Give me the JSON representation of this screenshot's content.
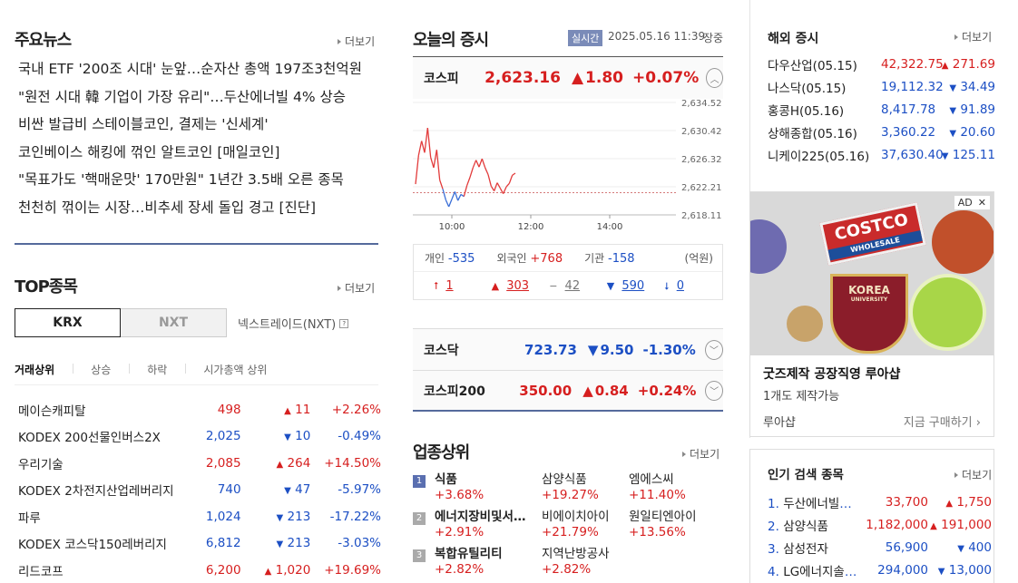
{
  "main_news": {
    "title": "주요뉴스",
    "more": "더보기",
    "items": [
      "국내 ETF '200조 시대' 눈앞…순자산 총액 197조3천억원",
      "\"원전 시대 韓 기업이 가장 유리\"…두산에너빌 4% 상승",
      "비싼 발급비 스테이블코인, 결제는 '신세계'",
      "코인베이스 해킹에 꺾인 알트코인 [매일코인]",
      "\"목표가도 '핵매운맛' 170만원\" 1년간 3.5배 오른 종목",
      "천천히 꺾이는 시장…비추세 장세 돌입 경고 [진단]"
    ]
  },
  "top": {
    "title": "TOP종목",
    "more": "더보기",
    "tabs": [
      "KRX",
      "NXT"
    ],
    "nxt_label": "넥스트레이드(NXT)",
    "subtabs": [
      "거래상위",
      "상승",
      "하락",
      "시가총액 상위"
    ],
    "rows": [
      {
        "name": "메이슨캐피탈",
        "price": "498",
        "arrow": "▲",
        "change": "11",
        "rate": "+2.26%",
        "dir": "up"
      },
      {
        "name": "KODEX 200선물인버스2X",
        "price": "2,025",
        "arrow": "▼",
        "change": "10",
        "rate": "-0.49%",
        "dir": "down"
      },
      {
        "name": "우리기술",
        "price": "2,085",
        "arrow": "▲",
        "change": "264",
        "rate": "+14.50%",
        "dir": "up"
      },
      {
        "name": "KODEX 2차전지산업레버리지",
        "price": "740",
        "arrow": "▼",
        "change": "47",
        "rate": "-5.97%",
        "dir": "down"
      },
      {
        "name": "파루",
        "price": "1,024",
        "arrow": "▼",
        "change": "213",
        "rate": "-17.22%",
        "dir": "down"
      },
      {
        "name": "KODEX 코스닥150레버리지",
        "price": "6,812",
        "arrow": "▼",
        "change": "213",
        "rate": "-3.03%",
        "dir": "down"
      },
      {
        "name": "리드코프",
        "price": "6,200",
        "arrow": "▲",
        "change": "1,020",
        "rate": "+19.69%",
        "dir": "up"
      }
    ]
  },
  "market": {
    "title": "오늘의 증시",
    "live": "실시간",
    "datetime": "2025.05.16 11:39",
    "status": "장중",
    "kospi": {
      "name": "코스피",
      "value": "2,623.16",
      "arrow": "▲",
      "change": "1.80",
      "rate": "+0.07%"
    },
    "chart_data": {
      "type": "line",
      "x_ticks": [
        "10:00",
        "12:00",
        "14:00"
      ],
      "y_ticks": [
        "2,634.52",
        "2,630.42",
        "2,626.32",
        "2,622.21",
        "2,618.11"
      ],
      "ylim": [
        2618.11,
        2634.52
      ],
      "baseline": 2621.36,
      "values": [
        2622.6,
        2626.8,
        2628.9,
        2627.2,
        2630.8,
        2626.5,
        2625.0,
        2627.6,
        2623.2,
        2621.9,
        2620.3,
        2619.3,
        2620.4,
        2621.5,
        2620.2,
        2621.1,
        2620.8,
        2622.4,
        2623.6,
        2625.0,
        2626.1,
        2625.1,
        2626.3,
        2625.0,
        2624.0,
        2622.3,
        2621.6,
        2622.8,
        2622.0,
        2621.2,
        2622.2,
        2622.7,
        2623.9,
        2624.2
      ]
    },
    "investors": [
      {
        "label": "개인",
        "value": "-535",
        "dir": "down"
      },
      {
        "label": "외국인",
        "value": "+768",
        "dir": "up"
      },
      {
        "label": "기관",
        "value": "-158",
        "dir": "down"
      }
    ],
    "unit": "(억원)",
    "breadth": [
      {
        "sym": "⭡",
        "val": "1",
        "dir": "up"
      },
      {
        "sym": "▲",
        "val": "303",
        "dir": "up"
      },
      {
        "sym": "−",
        "val": "42",
        "dir": "flat"
      },
      {
        "sym": "▼",
        "val": "590",
        "dir": "down"
      },
      {
        "sym": "⭣",
        "val": "0",
        "dir": "down"
      }
    ],
    "kosdaq": {
      "name": "코스닥",
      "value": "723.73",
      "arrow": "▼",
      "change": "9.50",
      "rate": "-1.30%"
    },
    "kospi200": {
      "name": "코스피200",
      "value": "350.00",
      "arrow": "▲",
      "change": "0.84",
      "rate": "+0.24%"
    }
  },
  "industry": {
    "title": "업종상위",
    "more": "더보기",
    "rows": [
      {
        "rank": "1",
        "name": "식품",
        "rate": "+3.68%",
        "s1": "삼양식품",
        "r1": "+19.27%",
        "s2": "엠에스씨",
        "r2": "+11.40%"
      },
      {
        "rank": "2",
        "name": "에너지장비및서비스",
        "rate": "+2.91%",
        "s1": "비에이치아이",
        "r1": "+21.79%",
        "s2": "원일티엔아이",
        "r2": "+13.56%"
      },
      {
        "rank": "3",
        "name": "복합유틸리티",
        "rate": "+2.82%",
        "s1": "지역난방공사",
        "r1": "+2.82%",
        "s2": "",
        "r2": ""
      }
    ]
  },
  "overseas": {
    "title": "해외 증시",
    "more": "더보기",
    "rows": [
      {
        "name": "다우산업(05.15)",
        "price": "42,322.75",
        "arrow": "▲",
        "change": "271.69",
        "dir": "up"
      },
      {
        "name": "나스닥(05.15)",
        "price": "19,112.32",
        "arrow": "▼",
        "change": "34.49",
        "dir": "down"
      },
      {
        "name": "홍콩H(05.16)",
        "price": "8,417.78",
        "arrow": "▼",
        "change": "91.89",
        "dir": "down"
      },
      {
        "name": "상해종합(05.16)",
        "price": "3,360.22",
        "arrow": "▼",
        "change": "20.60",
        "dir": "down"
      },
      {
        "name": "니케이225(05.16)",
        "price": "37,630.40",
        "arrow": "▼",
        "change": "125.11",
        "dir": "down"
      }
    ]
  },
  "ad": {
    "badge": "AD",
    "close": "✕",
    "title": "굿즈제작 공장직영 루아샵",
    "desc": "1개도 제작가능",
    "brand": "루아샵",
    "cta": "지금 구매하기",
    "pin_text": "COSTCO",
    "pin_sub": "WHOLESALE",
    "pin2": "KOREA",
    "pin2_sub": "UNIVERSITY"
  },
  "popular": {
    "title": "인기 검색 종목",
    "more": "더보기",
    "rows": [
      {
        "rank": "1.",
        "name": "두산에너빌리티",
        "price": "33,700",
        "arrow": "▲",
        "change": "1,750",
        "dir": "up"
      },
      {
        "rank": "2.",
        "name": "삼양식품",
        "price": "1,182,000",
        "arrow": "▲",
        "change": "191,000",
        "dir": "up"
      },
      {
        "rank": "3.",
        "name": "삼성전자",
        "price": "56,900",
        "arrow": "▼",
        "change": "400",
        "dir": "down"
      },
      {
        "rank": "4.",
        "name": "LG에너지솔루션",
        "price": "294,000",
        "arrow": "▼",
        "change": "13,000",
        "dir": "down"
      }
    ]
  }
}
